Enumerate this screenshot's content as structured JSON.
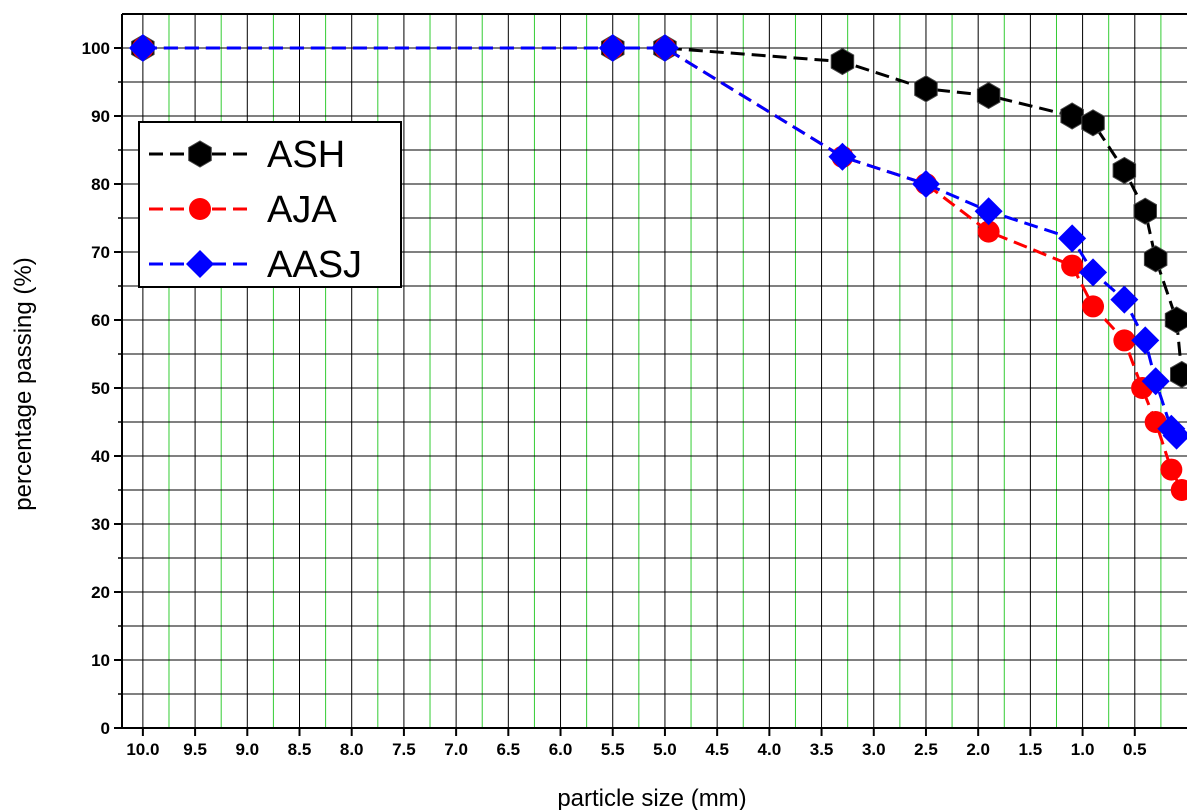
{
  "chart_data": {
    "type": "line",
    "title": "",
    "xlabel": "particle size (mm)",
    "ylabel": "percentage passing (%)",
    "x_reversed": true,
    "xlim": [
      10.2,
      0.0
    ],
    "ylim": [
      0,
      105
    ],
    "x_ticks": [
      10.0,
      9.5,
      9.0,
      8.5,
      8.0,
      7.5,
      7.0,
      6.5,
      6.0,
      5.5,
      5.0,
      4.5,
      4.0,
      3.5,
      3.0,
      2.5,
      2.0,
      1.5,
      1.0,
      0.5
    ],
    "x_tick_labels": [
      "10.0",
      "9.5",
      "9.0",
      "8.5",
      "8.0",
      "7.5",
      "7.0",
      "6.5",
      "6.0",
      "5.5",
      "5.0",
      "4.5",
      "4.0",
      "3.5",
      "3.0",
      "2.5",
      "2.0",
      "1.5",
      "1.0",
      "0.5"
    ],
    "y_ticks": [
      0,
      10,
      20,
      30,
      40,
      50,
      60,
      70,
      80,
      90,
      100
    ],
    "y_tick_labels": [
      "0",
      "10",
      "20",
      "30",
      "40",
      "50",
      "60",
      "70",
      "80",
      "90",
      "100"
    ],
    "grid": true,
    "legend_position": "top-left",
    "series": [
      {
        "name": "ASH",
        "color": "#000000",
        "marker": "hexagon",
        "x": [
          10.0,
          5.5,
          5.0,
          3.3,
          2.5,
          1.9,
          1.1,
          0.9,
          0.6,
          0.4,
          0.3,
          0.1,
          0.05
        ],
        "y": [
          100,
          100,
          100,
          98,
          94,
          93,
          90,
          89,
          82,
          76,
          69,
          60,
          52
        ]
      },
      {
        "name": "AJA",
        "color": "#ff0000",
        "marker": "circle",
        "x": [
          10.0,
          5.5,
          5.0,
          3.3,
          2.5,
          1.9,
          1.1,
          0.9,
          0.6,
          0.43,
          0.3,
          0.15,
          0.05
        ],
        "y": [
          100,
          100,
          100,
          84,
          80,
          73,
          68,
          62,
          57,
          50,
          45,
          38,
          35
        ]
      },
      {
        "name": "AASJ",
        "color": "#0000ff",
        "marker": "diamond",
        "x": [
          10.0,
          5.5,
          5.0,
          3.3,
          2.5,
          1.9,
          1.1,
          0.9,
          0.6,
          0.4,
          0.3,
          0.15,
          0.1
        ],
        "y": [
          100,
          100,
          100,
          84,
          80,
          76,
          72,
          67,
          63,
          57,
          51,
          44,
          43
        ]
      }
    ]
  }
}
